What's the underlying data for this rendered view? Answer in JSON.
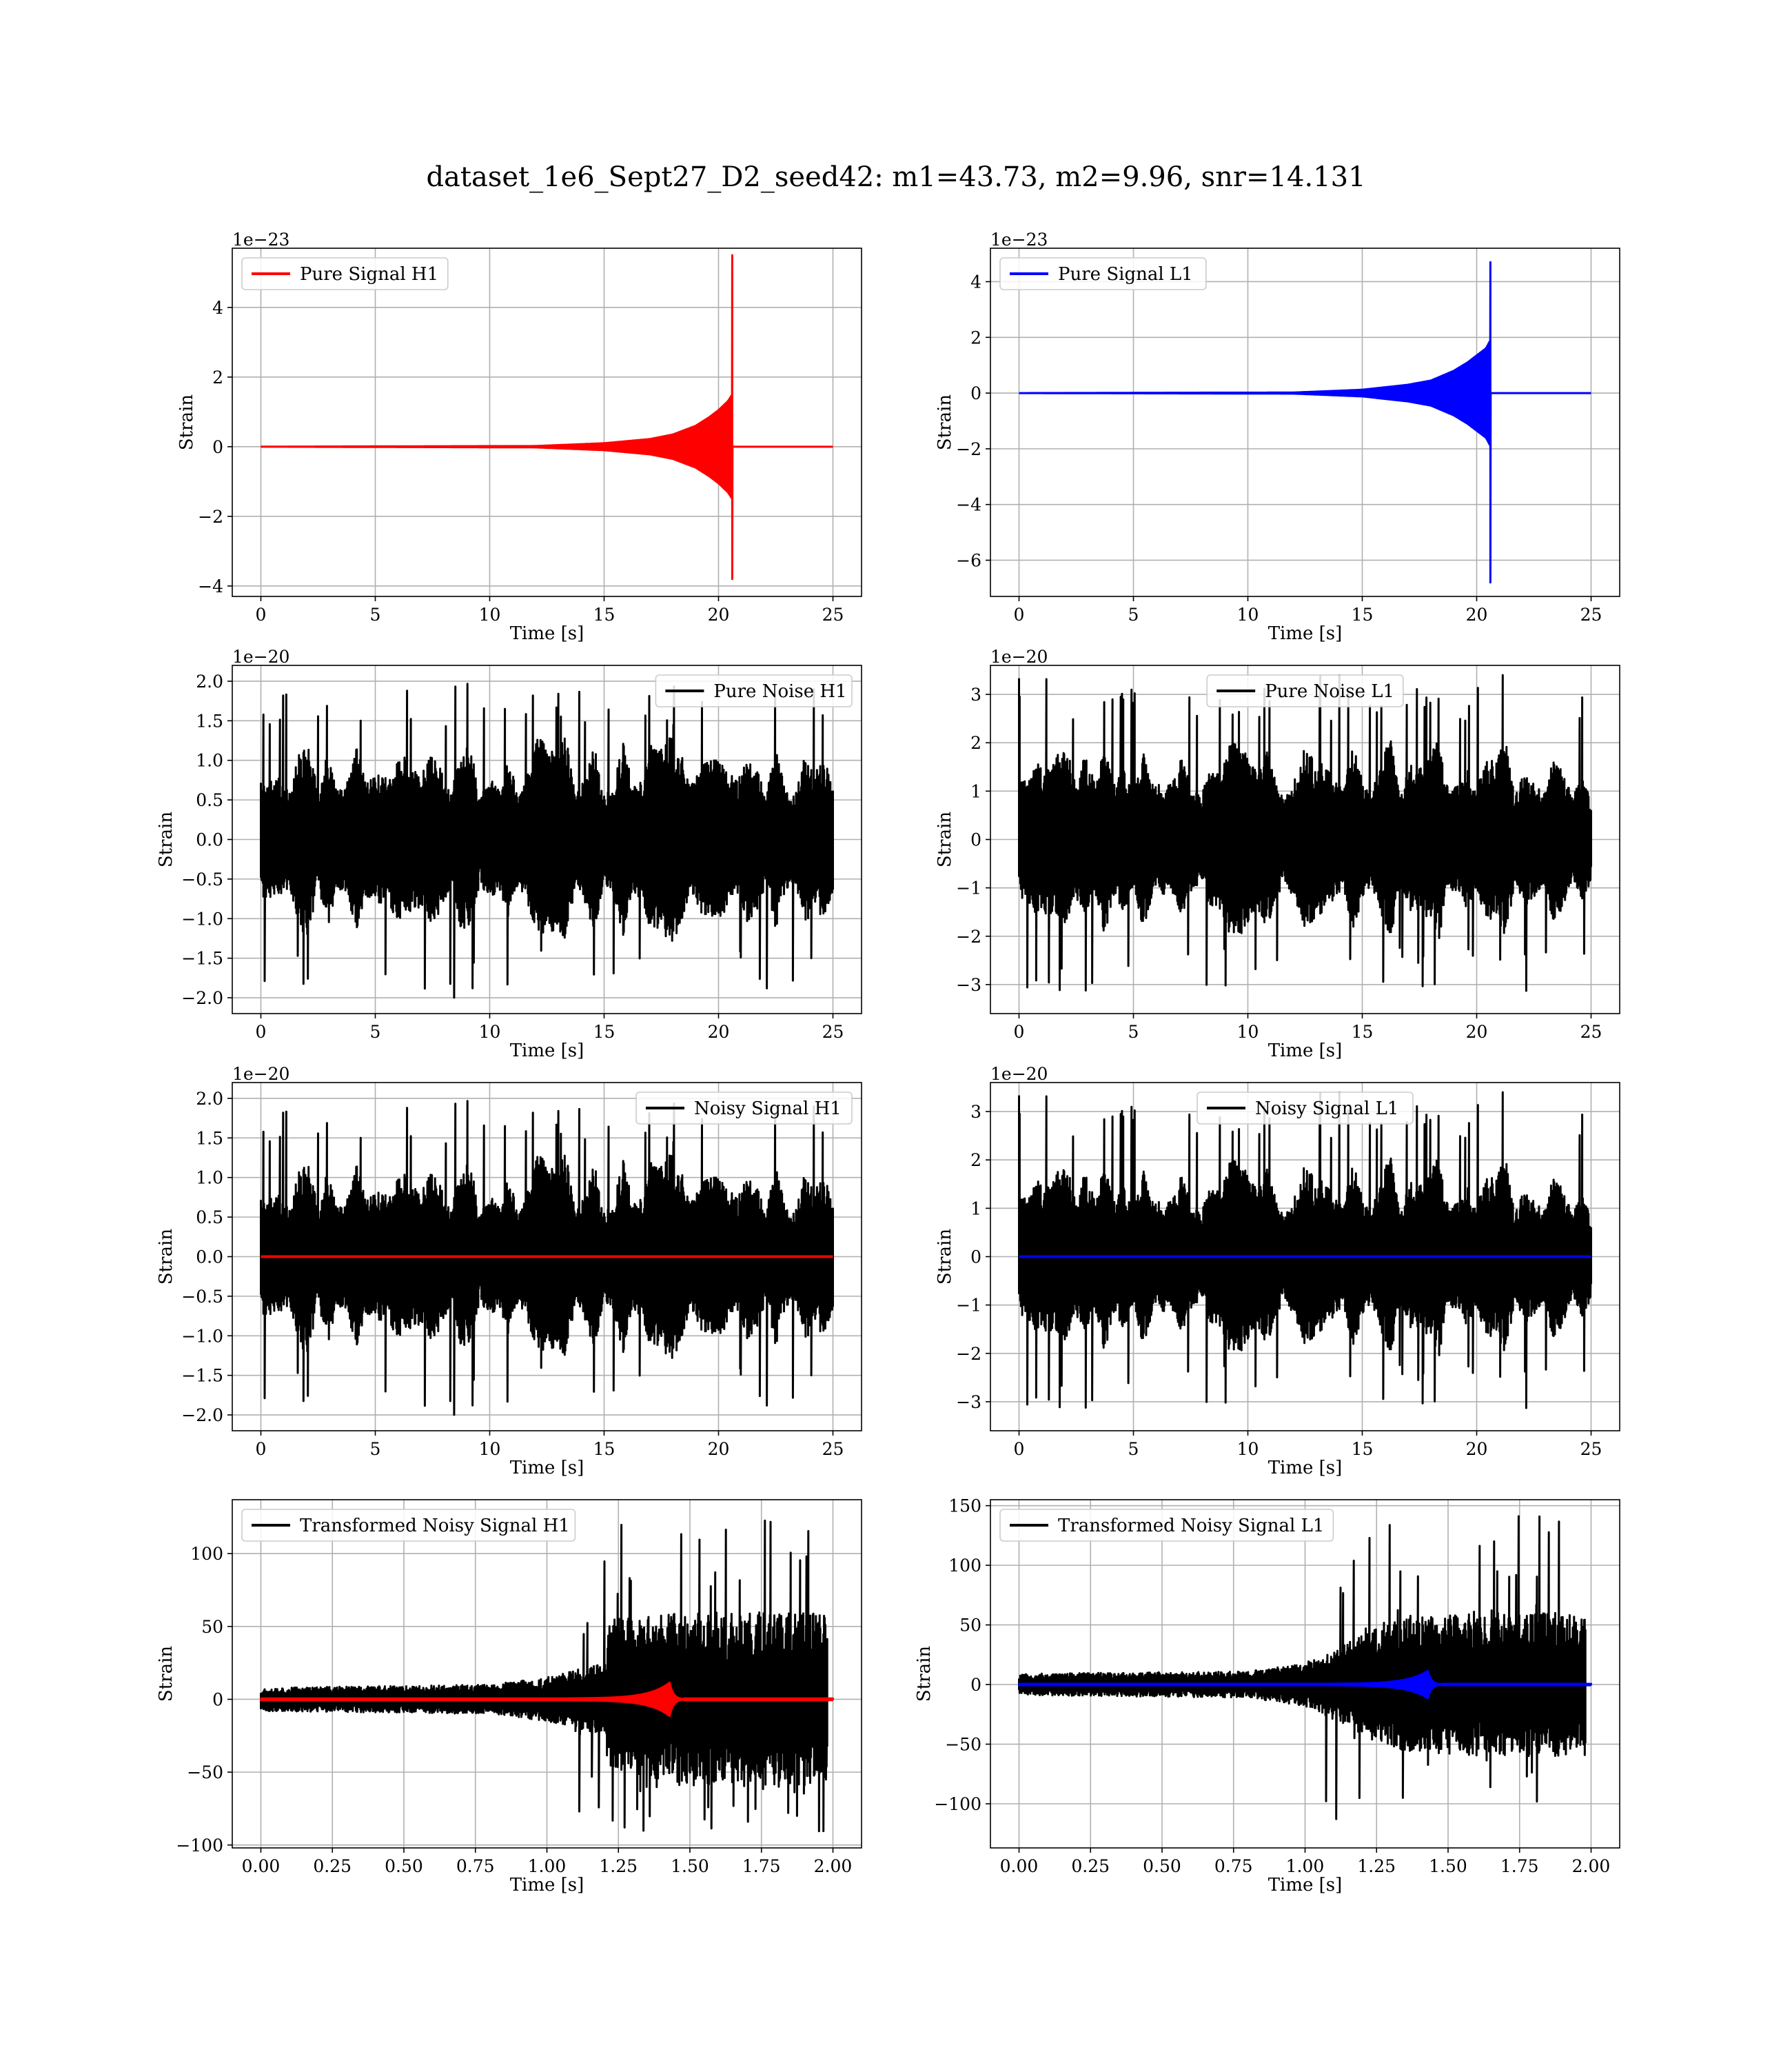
{
  "figure": {
    "suptitle": "dataset_1e6_Sept27_D2_seed42: m1=43.73, m2=9.96, snr=14.131",
    "colors": {
      "h1_signal": "#ff0000",
      "l1_signal": "#0000ff",
      "noise": "#000000",
      "grid": "#b0b0b0"
    }
  },
  "chart_data": [
    {
      "id": "pure-signal-h1",
      "type": "line",
      "row": 0,
      "col": 0,
      "title": "",
      "xlabel": "Time [s]",
      "ylabel": "Strain",
      "offset_text": "1e−23",
      "xlim": [
        -1.25,
        26.25
      ],
      "ylim": [
        -4.3,
        5.7
      ],
      "xticks": [
        0,
        5,
        10,
        15,
        20,
        25
      ],
      "xtick_labels": [
        "0",
        "5",
        "10",
        "15",
        "20",
        "25"
      ],
      "yticks": [
        -4,
        -2,
        0,
        2,
        4
      ],
      "ytick_labels": [
        "−4",
        "−2",
        "0",
        "2",
        "4"
      ],
      "grid": true,
      "legend_position": "upper left",
      "series": [
        {
          "name": "Pure Signal H1",
          "color": "#ff0000",
          "kind": "chirp",
          "t_start": 0,
          "t_end": 25,
          "t_merger": 20.6,
          "peak_pos": 5.5,
          "peak_neg": -3.8,
          "envelope": [
            [
              0,
              0
            ],
            [
              12,
              0.02
            ],
            [
              15,
              0.1
            ],
            [
              17,
              0.22
            ],
            [
              18,
              0.35
            ],
            [
              19,
              0.6
            ],
            [
              19.6,
              0.85
            ],
            [
              20.0,
              1.05
            ],
            [
              20.4,
              1.3
            ],
            [
              20.6,
              1.5
            ]
          ]
        }
      ]
    },
    {
      "id": "pure-signal-l1",
      "type": "line",
      "row": 0,
      "col": 1,
      "title": "",
      "xlabel": "Time [s]",
      "ylabel": "Strain",
      "offset_text": "1e−23",
      "xlim": [
        -1.25,
        26.25
      ],
      "ylim": [
        -7.3,
        5.2
      ],
      "xticks": [
        0,
        5,
        10,
        15,
        20,
        25
      ],
      "xtick_labels": [
        "0",
        "5",
        "10",
        "15",
        "20",
        "25"
      ],
      "yticks": [
        -6,
        -4,
        -2,
        0,
        2,
        4
      ],
      "ytick_labels": [
        "−6",
        "−4",
        "−2",
        "0",
        "2",
        "4"
      ],
      "grid": true,
      "legend_position": "upper left",
      "series": [
        {
          "name": "Pure Signal L1",
          "color": "#0000ff",
          "kind": "chirp",
          "t_start": 0,
          "t_end": 25,
          "t_merger": 20.6,
          "peak_pos": 4.7,
          "peak_neg": -6.8,
          "envelope": [
            [
              0,
              0
            ],
            [
              12,
              0.02
            ],
            [
              15,
              0.12
            ],
            [
              17,
              0.3
            ],
            [
              18,
              0.45
            ],
            [
              19,
              0.8
            ],
            [
              19.6,
              1.1
            ],
            [
              20.0,
              1.35
            ],
            [
              20.4,
              1.6
            ],
            [
              20.6,
              1.9
            ]
          ]
        }
      ]
    },
    {
      "id": "pure-noise-h1",
      "type": "line",
      "row": 1,
      "col": 0,
      "title": "",
      "xlabel": "Time [s]",
      "ylabel": "Strain",
      "offset_text": "1e−20",
      "xlim": [
        -1.25,
        26.25
      ],
      "ylim": [
        -2.2,
        2.2
      ],
      "xticks": [
        0,
        5,
        10,
        15,
        20,
        25
      ],
      "xtick_labels": [
        "0",
        "5",
        "10",
        "15",
        "20",
        "25"
      ],
      "yticks": [
        -2.0,
        -1.5,
        -1.0,
        -0.5,
        0.0,
        0.5,
        1.0,
        1.5,
        2.0
      ],
      "ytick_labels": [
        "−2.0",
        "−1.5",
        "−1.0",
        "−0.5",
        "0.0",
        "0.5",
        "1.0",
        "1.5",
        "2.0"
      ],
      "grid": true,
      "legend_position": "upper right",
      "series": [
        {
          "name": "Pure Noise H1",
          "color": "#000000",
          "kind": "noise",
          "t_start": 0,
          "t_end": 25,
          "max": 2.03,
          "min": -2.0,
          "base": 0.75,
          "seed": 11
        }
      ]
    },
    {
      "id": "pure-noise-l1",
      "type": "line",
      "row": 1,
      "col": 1,
      "title": "",
      "xlabel": "Time [s]",
      "ylabel": "Strain",
      "offset_text": "1e−20",
      "xlim": [
        -1.25,
        26.25
      ],
      "ylim": [
        -3.6,
        3.6
      ],
      "xticks": [
        0,
        5,
        10,
        15,
        20,
        25
      ],
      "xtick_labels": [
        "0",
        "5",
        "10",
        "15",
        "20",
        "25"
      ],
      "yticks": [
        -3,
        -2,
        -1,
        0,
        1,
        2,
        3
      ],
      "ytick_labels": [
        "−3",
        "−2",
        "−1",
        "0",
        "1",
        "2",
        "3"
      ],
      "grid": true,
      "legend_position": "upper center",
      "series": [
        {
          "name": "Pure Noise L1",
          "color": "#000000",
          "kind": "noise",
          "t_start": 0,
          "t_end": 25,
          "max": 3.4,
          "min": -3.2,
          "base": 1.2,
          "seed": 23
        }
      ]
    },
    {
      "id": "noisy-signal-h1",
      "type": "line",
      "row": 2,
      "col": 0,
      "title": "",
      "xlabel": "Time [s]",
      "ylabel": "Strain",
      "offset_text": "1e−20",
      "xlim": [
        -1.25,
        26.25
      ],
      "ylim": [
        -2.2,
        2.2
      ],
      "xticks": [
        0,
        5,
        10,
        15,
        20,
        25
      ],
      "xtick_labels": [
        "0",
        "5",
        "10",
        "15",
        "20",
        "25"
      ],
      "yticks": [
        -2.0,
        -1.5,
        -1.0,
        -0.5,
        0.0,
        0.5,
        1.0,
        1.5,
        2.0
      ],
      "ytick_labels": [
        "−2.0",
        "−1.5",
        "−1.0",
        "−0.5",
        "0.0",
        "0.5",
        "1.0",
        "1.5",
        "2.0"
      ],
      "grid": true,
      "legend_position": "upper right",
      "series": [
        {
          "name": "Noisy Signal H1",
          "color": "#000000",
          "kind": "noise",
          "t_start": 0,
          "t_end": 25,
          "max": 2.03,
          "min": -2.0,
          "base": 0.75,
          "seed": 11
        },
        {
          "name": "",
          "color": "#ff0000",
          "kind": "flat",
          "t_start": 0,
          "t_end": 25,
          "value": 0
        }
      ]
    },
    {
      "id": "noisy-signal-l1",
      "type": "line",
      "row": 2,
      "col": 1,
      "title": "",
      "xlabel": "Time [s]",
      "ylabel": "Strain",
      "offset_text": "1e−20",
      "xlim": [
        -1.25,
        26.25
      ],
      "ylim": [
        -3.6,
        3.6
      ],
      "xticks": [
        0,
        5,
        10,
        15,
        20,
        25
      ],
      "xtick_labels": [
        "0",
        "5",
        "10",
        "15",
        "20",
        "25"
      ],
      "yticks": [
        -3,
        -2,
        -1,
        0,
        1,
        2,
        3
      ],
      "ytick_labels": [
        "−3",
        "−2",
        "−1",
        "0",
        "1",
        "2",
        "3"
      ],
      "grid": true,
      "legend_position": "upper center",
      "series": [
        {
          "name": "Noisy Signal L1",
          "color": "#000000",
          "kind": "noise",
          "t_start": 0,
          "t_end": 25,
          "max": 3.4,
          "min": -3.2,
          "base": 1.2,
          "seed": 23
        },
        {
          "name": "",
          "color": "#0000ff",
          "kind": "flat",
          "t_start": 0,
          "t_end": 25,
          "value": 0
        }
      ]
    },
    {
      "id": "transformed-noisy-signal-h1",
      "type": "line",
      "row": 3,
      "col": 0,
      "title": "",
      "xlabel": "Time [s]",
      "ylabel": "Strain",
      "offset_text": "",
      "xlim": [
        -0.1,
        2.1
      ],
      "ylim": [
        -102,
        137
      ],
      "xticks": [
        0.0,
        0.25,
        0.5,
        0.75,
        1.0,
        1.25,
        1.5,
        1.75,
        2.0
      ],
      "xtick_labels": [
        "0.00",
        "0.25",
        "0.50",
        "0.75",
        "1.00",
        "1.25",
        "1.50",
        "1.75",
        "2.00"
      ],
      "yticks": [
        -100,
        -50,
        0,
        50,
        100
      ],
      "ytick_labels": [
        "−100",
        "−50",
        "0",
        "50",
        "100"
      ],
      "grid": true,
      "legend_position": "upper left",
      "series": [
        {
          "name": "Transformed Noisy Signal H1",
          "color": "#000000",
          "kind": "whitened",
          "t_start": 0,
          "t_end": 1.98,
          "max": 125,
          "min": -95,
          "seed": 37,
          "amp": [
            [
              0,
              8
            ],
            [
              0.8,
              10
            ],
            [
              1.0,
              15
            ],
            [
              1.2,
              25
            ],
            [
              1.22,
              55
            ],
            [
              1.5,
              60
            ],
            [
              1.98,
              60
            ]
          ]
        },
        {
          "name": "",
          "color": "#ff0000",
          "kind": "burst",
          "t_start": 0,
          "t_end": 2.0,
          "t_peak": 1.43,
          "peak": 11
        }
      ]
    },
    {
      "id": "transformed-noisy-signal-l1",
      "type": "line",
      "row": 3,
      "col": 1,
      "title": "",
      "xlabel": "Time [s]",
      "ylabel": "Strain",
      "offset_text": "",
      "xlim": [
        -0.1,
        2.1
      ],
      "ylim": [
        -137,
        155
      ],
      "xticks": [
        0.0,
        0.25,
        0.5,
        0.75,
        1.0,
        1.25,
        1.5,
        1.75,
        2.0
      ],
      "xtick_labels": [
        "0.00",
        "0.25",
        "0.50",
        "0.75",
        "1.00",
        "1.25",
        "1.50",
        "1.75",
        "2.00"
      ],
      "yticks": [
        -100,
        -50,
        0,
        50,
        100,
        150
      ],
      "ytick_labels": [
        "−100",
        "−50",
        "0",
        "50",
        "100",
        "150"
      ],
      "grid": true,
      "legend_position": "upper left",
      "series": [
        {
          "name": "Transformed Noisy Signal L1",
          "color": "#000000",
          "kind": "whitened",
          "t_start": 0,
          "t_end": 1.98,
          "max": 143,
          "min": -125,
          "seed": 53,
          "amp": [
            [
              0,
              9
            ],
            [
              0.8,
              11
            ],
            [
              1.0,
              18
            ],
            [
              1.15,
              35
            ],
            [
              1.3,
              55
            ],
            [
              1.6,
              60
            ],
            [
              1.98,
              60
            ]
          ]
        },
        {
          "name": "",
          "color": "#0000ff",
          "kind": "burst",
          "t_start": 0,
          "t_end": 2.0,
          "t_peak": 1.43,
          "peak": 11
        }
      ]
    }
  ]
}
